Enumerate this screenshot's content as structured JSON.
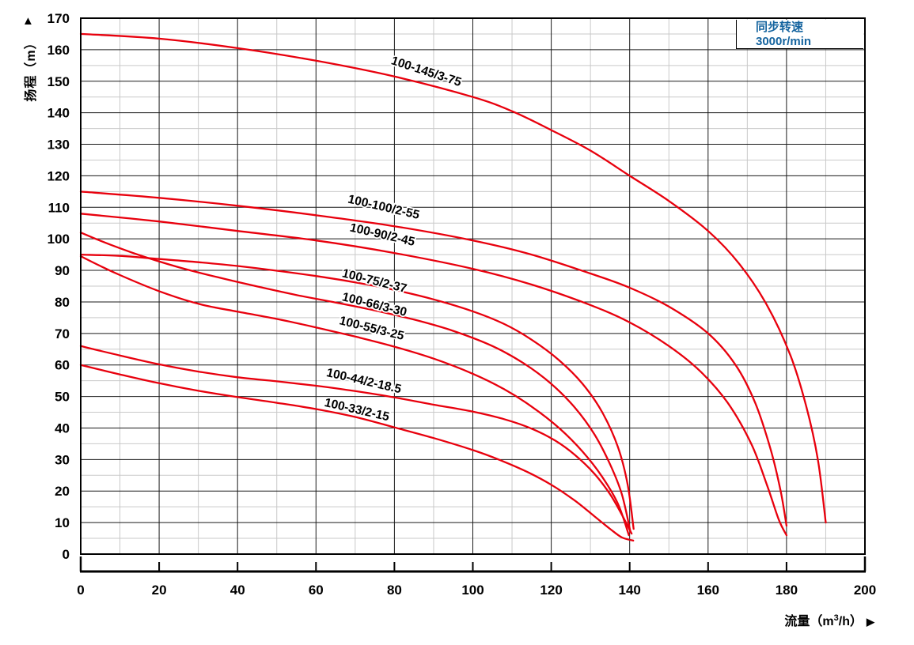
{
  "legend": {
    "line1": "同步转速",
    "line2": "3000r/min",
    "color": "#15649f"
  },
  "axes": {
    "y_title": "扬程（m）",
    "y_arrow": "▲",
    "x_title_prefix": "流量（m",
    "x_title_sup": "3",
    "x_title_suffix": "/h）",
    "x_arrow": "▶"
  },
  "chart_data": {
    "type": "line",
    "title": "",
    "xlabel": "流量（m³/h）",
    "ylabel": "扬程（m）",
    "xlim": [
      0,
      200
    ],
    "ylim": [
      0,
      170
    ],
    "x_ticks": [
      0,
      20,
      40,
      60,
      80,
      100,
      120,
      140,
      160,
      180,
      200
    ],
    "y_ticks": [
      0,
      10,
      20,
      30,
      40,
      50,
      60,
      70,
      80,
      90,
      100,
      110,
      120,
      130,
      140,
      150,
      160,
      170
    ],
    "x_minor_step": 10,
    "y_minor_step": 5,
    "grid": true,
    "legend_position": "top-right",
    "curve_color": "#e8000d",
    "grid_major_color": "#1a1a1a",
    "grid_minor_color": "#c9c9c9",
    "border_color": "#000000",
    "series": [
      {
        "name": "100-145/3-75",
        "label_x": 79,
        "label_y": 155.5,
        "label_rot": 18,
        "points": [
          [
            0,
            165
          ],
          [
            20,
            163.5
          ],
          [
            40,
            160.5
          ],
          [
            60,
            156.5
          ],
          [
            80,
            151.5
          ],
          [
            100,
            145
          ],
          [
            110,
            140.5
          ],
          [
            120,
            134.5
          ],
          [
            130,
            128
          ],
          [
            140,
            120
          ],
          [
            150,
            112
          ],
          [
            160,
            102.5
          ],
          [
            168,
            92
          ],
          [
            175,
            79
          ],
          [
            181,
            63
          ],
          [
            185,
            47
          ],
          [
            188,
            30
          ],
          [
            190,
            10
          ]
        ]
      },
      {
        "name": "100-100/2-55",
        "label_x": 68,
        "label_y": 111.5,
        "label_rot": 13,
        "points": [
          [
            0,
            115
          ],
          [
            20,
            113
          ],
          [
            40,
            110.5
          ],
          [
            60,
            107.5
          ],
          [
            80,
            104
          ],
          [
            100,
            99.5
          ],
          [
            115,
            95
          ],
          [
            130,
            89
          ],
          [
            140,
            84.5
          ],
          [
            150,
            78.5
          ],
          [
            160,
            70
          ],
          [
            167,
            60
          ],
          [
            172,
            48
          ],
          [
            176,
            33
          ],
          [
            178.5,
            20
          ],
          [
            180,
            9
          ]
        ]
      },
      {
        "name": "100-90/2-45",
        "label_x": 68.5,
        "label_y": 102.5,
        "label_rot": 13,
        "points": [
          [
            0,
            108
          ],
          [
            20,
            105.5
          ],
          [
            40,
            102.5
          ],
          [
            60,
            99.5
          ],
          [
            80,
            95.5
          ],
          [
            100,
            90.5
          ],
          [
            115,
            85.5
          ],
          [
            130,
            79
          ],
          [
            140,
            73.5
          ],
          [
            150,
            66
          ],
          [
            158,
            58
          ],
          [
            165,
            48
          ],
          [
            171,
            35
          ],
          [
            175,
            22
          ],
          [
            178,
            11
          ],
          [
            180,
            6
          ]
        ]
      },
      {
        "name": "100-75/2-37",
        "label_x": 66.5,
        "label_y": 88,
        "label_rot": 14,
        "points": [
          [
            0,
            95
          ],
          [
            10,
            94.6
          ],
          [
            20,
            93.6
          ],
          [
            30,
            92.6
          ],
          [
            40,
            91.4
          ],
          [
            50,
            89.9
          ],
          [
            60,
            88.2
          ],
          [
            70,
            86.2
          ],
          [
            80,
            83.8
          ],
          [
            90,
            80.8
          ],
          [
            100,
            77
          ],
          [
            108,
            73
          ],
          [
            115,
            68
          ],
          [
            122,
            61.5
          ],
          [
            128,
            54
          ],
          [
            133,
            45
          ],
          [
            137,
            34
          ],
          [
            139.5,
            22
          ],
          [
            141,
            8
          ]
        ]
      },
      {
        "name": "100-66/3-30",
        "label_x": 66.5,
        "label_y": 80.5,
        "label_rot": 14,
        "points": [
          [
            0,
            102
          ],
          [
            5,
            99.4
          ],
          [
            10,
            97
          ],
          [
            16,
            94.4
          ],
          [
            25,
            91
          ],
          [
            35,
            87.8
          ],
          [
            45,
            84.9
          ],
          [
            55,
            82.2
          ],
          [
            65,
            79.8
          ],
          [
            75,
            77.3
          ],
          [
            85,
            74.4
          ],
          [
            95,
            70.8
          ],
          [
            105,
            66
          ],
          [
            113,
            60.5
          ],
          [
            120,
            54
          ],
          [
            126,
            46.5
          ],
          [
            131,
            38
          ],
          [
            135,
            28.5
          ],
          [
            138,
            19
          ],
          [
            140.2,
            7
          ]
        ]
      },
      {
        "name": "100-55/3-25",
        "label_x": 65.8,
        "label_y": 73,
        "label_rot": 14,
        "points": [
          [
            0,
            94.5
          ],
          [
            5,
            91.4
          ],
          [
            10,
            88.5
          ],
          [
            20,
            83.4
          ],
          [
            30,
            79.4
          ],
          [
            40,
            76.9
          ],
          [
            50,
            74.6
          ],
          [
            60,
            71.9
          ],
          [
            70,
            69
          ],
          [
            80,
            65.8
          ],
          [
            90,
            62
          ],
          [
            100,
            57.2
          ],
          [
            108,
            52.3
          ],
          [
            115,
            46.8
          ],
          [
            122,
            40
          ],
          [
            128,
            32.5
          ],
          [
            133,
            24.5
          ],
          [
            137,
            16
          ],
          [
            139.8,
            6
          ]
        ]
      },
      {
        "name": "100-44/2-18.5",
        "label_x": 62.5,
        "label_y": 56.5,
        "label_rot": 13,
        "points": [
          [
            0,
            66
          ],
          [
            10,
            63
          ],
          [
            20,
            60.2
          ],
          [
            30,
            57.9
          ],
          [
            40,
            56.1
          ],
          [
            50,
            54.8
          ],
          [
            60,
            53.4
          ],
          [
            70,
            51.7
          ],
          [
            80,
            49.7
          ],
          [
            90,
            47.4
          ],
          [
            100,
            45.2
          ],
          [
            108,
            42.8
          ],
          [
            115,
            39.8
          ],
          [
            121,
            36
          ],
          [
            126,
            31.5
          ],
          [
            131,
            25.5
          ],
          [
            135,
            19
          ],
          [
            138,
            12.5
          ],
          [
            140.5,
            6.5
          ]
        ]
      },
      {
        "name": "100-33/2-15",
        "label_x": 62,
        "label_y": 47,
        "label_rot": 13,
        "points": [
          [
            0,
            60
          ],
          [
            10,
            57
          ],
          [
            20,
            54.2
          ],
          [
            30,
            51.8
          ],
          [
            40,
            49.8
          ],
          [
            50,
            48
          ],
          [
            60,
            46
          ],
          [
            70,
            43.5
          ],
          [
            80,
            40.2
          ],
          [
            90,
            36.8
          ],
          [
            100,
            33
          ],
          [
            107,
            29.8
          ],
          [
            114,
            26
          ],
          [
            120,
            22
          ],
          [
            126,
            17
          ],
          [
            131,
            12
          ],
          [
            135,
            8
          ],
          [
            138,
            5.3
          ],
          [
            140.9,
            4.3
          ]
        ]
      }
    ]
  }
}
